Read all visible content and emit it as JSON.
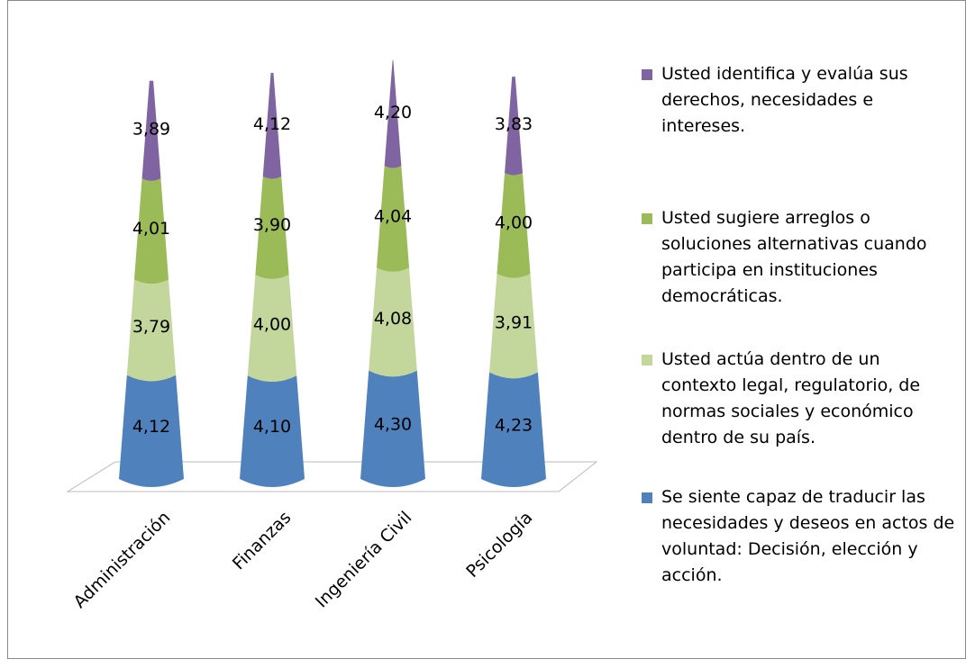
{
  "chart_data": {
    "type": "cone",
    "categories": [
      "Administración",
      "Finanzas",
      "Ingeniería Civil",
      "Psicología"
    ],
    "series": [
      {
        "name": "Se siente capaz de traducir las necesidades y deseos en actos de voluntad: Decisión, elección y acción.",
        "color": "#4f81bd",
        "values": [
          4.12,
          4.1,
          4.3,
          4.23
        ],
        "value_labels": [
          "4,12",
          "4,10",
          "4,30",
          "4,23"
        ]
      },
      {
        "name": "Usted actúa dentro de un contexto legal, regulatorio, de normas sociales y económico dentro de su país.",
        "color": "#c3d69b",
        "values": [
          3.79,
          4.0,
          4.08,
          3.91
        ],
        "value_labels": [
          "3,79",
          "4,00",
          "4,08",
          "3,91"
        ]
      },
      {
        "name": "Usted sugiere arreglos o soluciones alternativas cuando participa en instituciones democráticas.",
        "color": "#9bbb59",
        "values": [
          4.01,
          3.9,
          4.04,
          4.0
        ],
        "value_labels": [
          "4,01",
          "3,90",
          "4,04",
          "4,00"
        ]
      },
      {
        "name": "Usted identifica y evalúa sus derechos, necesidades e intereses.",
        "color": "#8064a2",
        "values": [
          3.89,
          4.12,
          4.2,
          3.83
        ],
        "value_labels": [
          "3,89",
          "4,12",
          "4,20",
          "3,83"
        ]
      }
    ]
  }
}
